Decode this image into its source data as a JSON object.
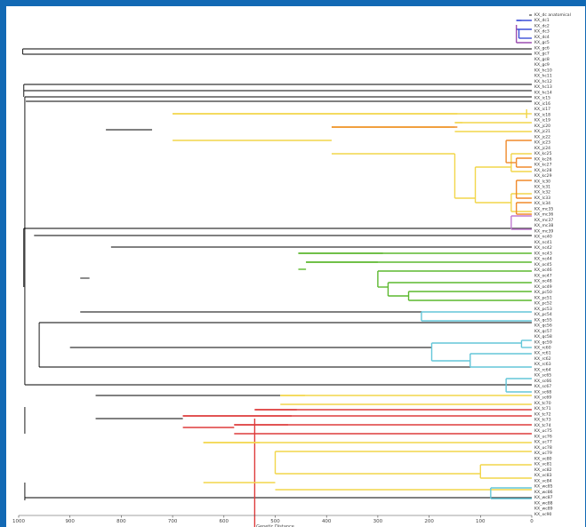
{
  "axis": {
    "title": "Genetic Distance",
    "ticks": [
      "1000",
      "900",
      "800",
      "700",
      "600",
      "500",
      "400",
      "300",
      "200",
      "100",
      "0"
    ],
    "xlim": [
      1000,
      0
    ]
  },
  "colors": {
    "black": "#000000",
    "purple": "#9b4fb0",
    "blue": "#3c4fd9",
    "yellow": "#f2d64a",
    "orange": "#f08a2c",
    "green": "#5cb82e",
    "cyan": "#63c6d9",
    "red": "#de3b3b",
    "violet": "#c07ad0"
  },
  "leaves": [
    "KX_dc anatomical",
    "KX_dc1",
    "KX_dc2",
    "KX_dc3",
    "KX_dc4",
    "KX_gc5",
    "KX_gc6",
    "KX_gc7",
    "KX_gc8",
    "KX_gc9",
    "KX_hc10",
    "KX_hc11",
    "KX_hc12",
    "KX_hc13",
    "KX_hc14",
    "KX_ic15",
    "KX_ic16",
    "KX_ic17",
    "KX_ic18",
    "KX_ic19",
    "KX_jc20",
    "KX_jc21",
    "KX_jc22",
    "KX_jc23",
    "KX_jc24",
    "KX_kc25",
    "KX_kc26",
    "KX_kc27",
    "KX_kc28",
    "KX_kc29",
    "KX_lc30",
    "KX_lc31",
    "KX_lc32",
    "KX_lc33",
    "KX_lc34",
    "KX_mc35",
    "KX_mc36",
    "KX_mc37",
    "KX_mc38",
    "KX_mc39",
    "KX_nc40",
    "KX_nc41",
    "KX_nc42",
    "KX_nc43",
    "KX_nc44",
    "KX_oc45",
    "KX_oc46",
    "KX_oc47",
    "KX_oc48",
    "KX_oc49",
    "KX_pc50",
    "KX_pc51",
    "KX_pc52",
    "KX_pc53",
    "KX_pc54",
    "KX_qc55",
    "KX_qc56",
    "KX_qc57",
    "KX_qc58",
    "KX_qc59",
    "KX_rc60",
    "KX_rc61",
    "KX_rc62",
    "KX_rc63",
    "KX_rc64",
    "KX_sc65",
    "KX_sc66",
    "KX_sc67",
    "KX_sc68",
    "KX_sc69",
    "KX_tc70",
    "KX_tc71",
    "KX_tc72",
    "KX_tc73",
    "KX_tc74",
    "KX_uc75",
    "KX_uc76",
    "KX_uc77",
    "KX_uc78",
    "KX_uc79",
    "KX_vc80",
    "KX_vc81",
    "KX_vc82",
    "KX_vc83",
    "KX_vc84",
    "KX_wc85",
    "KX_wc86",
    "KX_wc87",
    "KX_wc88",
    "KX_wc89",
    "KX_xc90"
  ],
  "stems": [
    {
      "y": 4,
      "x1": 5,
      "x2": 0,
      "c": "black"
    },
    {
      "y": 42,
      "x1": 992,
      "x2": 0,
      "c": "black"
    },
    {
      "y": 48,
      "x1": 992,
      "x2": 0,
      "c": "black"
    },
    {
      "y": 82,
      "x1": 990,
      "x2": 0,
      "c": "black"
    },
    {
      "y": 89,
      "x1": 990,
      "x2": 0,
      "c": "black"
    },
    {
      "y": 96,
      "x1": 988,
      "x2": 0,
      "c": "black"
    },
    {
      "y": 101,
      "x1": 986,
      "x2": 0,
      "c": "black"
    },
    {
      "y": 133,
      "x1": 830,
      "x2": 740,
      "c": "black"
    },
    {
      "y": 244,
      "x1": 990,
      "x2": 0,
      "c": "black"
    },
    {
      "y": 252,
      "x1": 970,
      "x2": 0,
      "c": "black"
    },
    {
      "y": 265,
      "x1": 820,
      "x2": 0,
      "c": "black"
    },
    {
      "y": 300,
      "x1": 880,
      "x2": 862,
      "c": "black"
    },
    {
      "y": 338,
      "x1": 880,
      "x2": 215,
      "c": "black"
    },
    {
      "y": 350,
      "x1": 960,
      "x2": 0,
      "c": "black"
    },
    {
      "y": 378,
      "x1": 900,
      "x2": 195,
      "c": "black"
    },
    {
      "y": 400,
      "x1": 960,
      "x2": 0,
      "c": "black"
    },
    {
      "y": 420,
      "x1": 988,
      "x2": 0,
      "c": "black"
    },
    {
      "y": 432,
      "x1": 850,
      "x2": 490,
      "c": "black"
    },
    {
      "y": 458,
      "x1": 850,
      "x2": 680,
      "c": "black"
    },
    {
      "y": 547,
      "x1": 988,
      "x2": 0,
      "c": "black"
    }
  ],
  "vlines": [
    {
      "x": 992,
      "y1": 42,
      "y2": 48
    },
    {
      "x": 990,
      "y1": 82,
      "y2": 96
    },
    {
      "x": 988,
      "y1": 96,
      "y2": 420
    },
    {
      "x": 990,
      "y1": 244,
      "y2": 310
    },
    {
      "x": 960,
      "y1": 350,
      "y2": 400
    },
    {
      "x": 988,
      "y1": 445,
      "y2": 475
    },
    {
      "x": 988,
      "y1": 530,
      "y2": 550
    }
  ],
  "clades": [
    {
      "c": "blue",
      "segs": [
        [
          30,
          10,
          20
        ],
        [
          30,
          10,
          0
        ],
        [
          30,
          20,
          0
        ],
        [
          25,
          20,
          30
        ],
        [
          25,
          30,
          0
        ]
      ]
    },
    {
      "c": "purple",
      "segs": [
        [
          30,
          15,
          35
        ],
        [
          30,
          35,
          0
        ]
      ]
    },
    {
      "c": "yellow",
      "segs": [
        [
          700,
          115,
          145
        ],
        [
          700,
          115,
          10
        ],
        [
          10,
          115,
          0
        ],
        [
          10,
          110,
          120
        ],
        [
          700,
          145,
          390
        ],
        [
          390,
          130,
          160
        ],
        [
          390,
          130,
          150
        ],
        [
          150,
          125,
          135
        ],
        [
          150,
          125,
          0
        ],
        [
          150,
          135,
          0
        ],
        [
          390,
          160,
          150
        ],
        [
          150,
          160,
          210
        ],
        [
          150,
          210,
          110
        ],
        [
          110,
          175,
          215
        ],
        [
          110,
          175,
          40
        ],
        [
          40,
          160,
          180
        ],
        [
          40,
          160,
          0
        ],
        [
          40,
          180,
          0
        ],
        [
          110,
          215,
          40
        ],
        [
          40,
          205,
          225
        ],
        [
          40,
          205,
          0
        ],
        [
          40,
          225,
          0
        ]
      ]
    },
    {
      "c": "orange",
      "segs": [
        [
          390,
          130,
          145
        ],
        [
          50,
          145,
          170
        ],
        [
          50,
          145,
          0
        ],
        [
          50,
          170,
          30
        ],
        [
          30,
          165,
          175
        ],
        [
          30,
          165,
          0
        ],
        [
          30,
          175,
          0
        ],
        [
          30,
          190,
          210
        ],
        [
          30,
          190,
          0
        ],
        [
          30,
          210,
          0
        ],
        [
          30,
          215,
          228
        ],
        [
          30,
          215,
          0
        ],
        [
          30,
          228,
          0
        ]
      ]
    },
    {
      "c": "violet",
      "segs": [
        [
          40,
          230,
          245
        ],
        [
          40,
          230,
          0
        ],
        [
          40,
          245,
          0
        ]
      ]
    },
    {
      "c": "green",
      "segs": [
        [
          455,
          272,
          290
        ],
        [
          455,
          272,
          0
        ],
        [
          455,
          290,
          440
        ],
        [
          440,
          282,
          300
        ],
        [
          440,
          282,
          0
        ],
        [
          440,
          300,
          300
        ],
        [
          300,
          292,
          310
        ],
        [
          300,
          292,
          0
        ],
        [
          300,
          310,
          280
        ],
        [
          280,
          305,
          320
        ],
        [
          280,
          305,
          0
        ],
        [
          280,
          320,
          240
        ],
        [
          240,
          315,
          325
        ],
        [
          240,
          315,
          0
        ],
        [
          240,
          325,
          0
        ]
      ]
    },
    {
      "c": "cyan",
      "segs": [
        [
          215,
          338,
          348
        ],
        [
          215,
          338,
          0
        ],
        [
          215,
          348,
          0
        ]
      ]
    },
    {
      "c": "cyan",
      "segs": [
        [
          195,
          373,
          393
        ],
        [
          195,
          373,
          20
        ],
        [
          20,
          370,
          378
        ],
        [
          20,
          370,
          0
        ],
        [
          20,
          378,
          0
        ],
        [
          195,
          393,
          120
        ],
        [
          120,
          385,
          400
        ],
        [
          120,
          385,
          0
        ],
        [
          120,
          400,
          0
        ],
        [
          50,
          413,
          428
        ],
        [
          50,
          413,
          0
        ],
        [
          50,
          428,
          0
        ]
      ]
    },
    {
      "c": "yellow",
      "segs": [
        [
          490,
          432,
          442
        ],
        [
          490,
          432,
          0
        ],
        [
          490,
          442,
          0
        ]
      ]
    },
    {
      "c": "red",
      "segs": [
        [
          540,
          448,
          458
        ],
        [
          540,
          448,
          0
        ],
        [
          540,
          458,
          680
        ],
        [
          680,
          455,
          468
        ],
        [
          680,
          455,
          0
        ],
        [
          680,
          468,
          580
        ],
        [
          580,
          465,
          475
        ],
        [
          580,
          465,
          0
        ],
        [
          580,
          475,
          0
        ]
      ]
    },
    {
      "c": "yellow",
      "segs": [
        [
          640,
          485,
          530
        ],
        [
          640,
          485,
          0
        ],
        [
          640,
          530,
          500
        ],
        [
          500,
          495,
          520
        ],
        [
          500,
          495,
          0
        ],
        [
          500,
          520,
          100
        ],
        [
          100,
          510,
          525
        ],
        [
          100,
          510,
          0
        ],
        [
          100,
          525,
          0
        ],
        [
          500,
          538,
          0
        ]
      ]
    },
    {
      "c": "cyan",
      "segs": [
        [
          80,
          536,
          548
        ],
        [
          80,
          536,
          0
        ],
        [
          80,
          548,
          0
        ]
      ]
    }
  ]
}
